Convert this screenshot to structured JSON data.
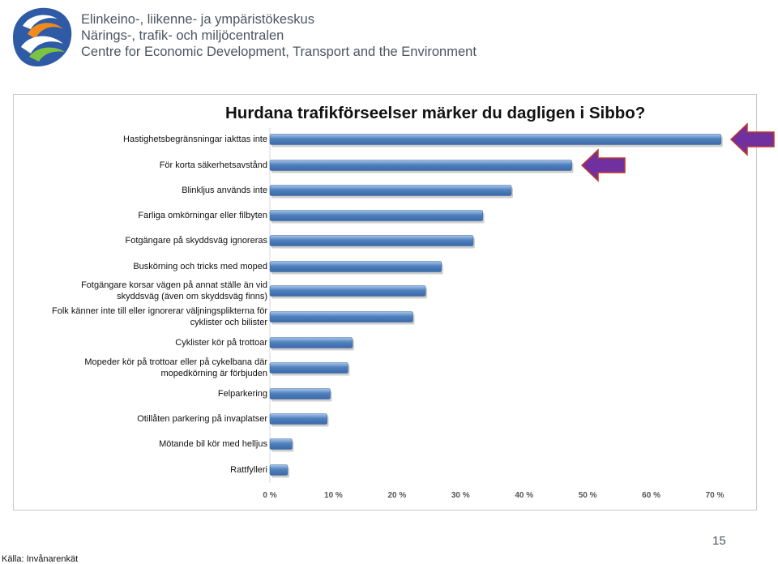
{
  "header": {
    "org_lines": [
      "Elinkeino-, liikenne- ja ympäristökeskus",
      "Närings-, trafik- och miljöcentralen",
      "Centre for Economic Development, Transport and the Environment"
    ]
  },
  "chart_data": {
    "type": "bar",
    "orientation": "horizontal",
    "title": "Hurdana trafikförseelser märker du dagligen i Sibbo?",
    "xlabel": "",
    "ylabel": "",
    "xlim": [
      0,
      70
    ],
    "x_ticks": [
      "0 %",
      "10 %",
      "20 %",
      "30 %",
      "40 %",
      "50 %",
      "60 %",
      "70 %"
    ],
    "x_tick_values": [
      0,
      10,
      20,
      30,
      40,
      50,
      60,
      70
    ],
    "categories": [
      [
        "Hastighetsbegränsningar iakttas inte"
      ],
      [
        "För korta säkerhetsavstånd"
      ],
      [
        "Blinkljus används inte"
      ],
      [
        "Farliga omkörningar eller filbyten"
      ],
      [
        "Fotgängare på skyddsväg ignoreras"
      ],
      [
        "Buskörning och tricks med moped"
      ],
      [
        "Fotgängare korsar vägen på annat ställe än vid",
        "skyddsväg (även om skyddsväg finns)"
      ],
      [
        "Folk känner inte till eller ignorerar väljningsplikterna för",
        "cyklister och bilister"
      ],
      [
        "Cyklister kör på trottoar"
      ],
      [
        "Mopeder kör på trottoar eller på cykelbana där",
        "mopedkörning är förbjuden"
      ],
      [
        "Felparkering"
      ],
      [
        "Otillåten parkering på invaplatser"
      ],
      [
        "Mötande bil kör med helljus"
      ],
      [
        "Rattfylleri"
      ]
    ],
    "values": [
      71,
      47.5,
      38,
      33.5,
      32,
      27,
      24.5,
      22.5,
      13,
      12.3,
      9.5,
      9,
      3.5,
      2.8
    ],
    "bar_color": "#4f81bd",
    "highlighted_categories": [
      0,
      1
    ],
    "highlight_color": "#7030a0",
    "grid": false
  },
  "footer": {
    "page_number": "15",
    "source": "Källa: Invånarenkät"
  }
}
